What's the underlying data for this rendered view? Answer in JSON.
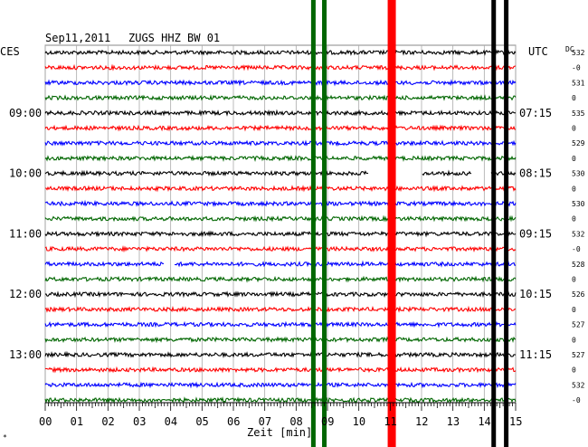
{
  "header": {
    "date": "Sep11,2011",
    "station": "ZUGS HHZ BW 01",
    "left_unit": "CES",
    "right_unit": "UTC",
    "dc_label": "DC"
  },
  "chart_data": {
    "type": "line",
    "title": "Sep11,2011   ZUGS HHZ BW 01",
    "xlabel": "Zeit [min]",
    "xlim": [
      0,
      15
    ],
    "x_ticks": [
      "00",
      "01",
      "02",
      "03",
      "04",
      "05",
      "06",
      "07",
      "08",
      "09",
      "10",
      "11",
      "12",
      "13",
      "14",
      "15"
    ],
    "trace_count": 24,
    "trace_colors": [
      "#000000",
      "#ff0000",
      "#0000ff",
      "#006600"
    ],
    "left_time_labels": [
      {
        "trace": 4,
        "label": "09:00"
      },
      {
        "trace": 8,
        "label": "10:00"
      },
      {
        "trace": 12,
        "label": "11:00"
      },
      {
        "trace": 16,
        "label": "12:00"
      },
      {
        "trace": 20,
        "label": "13:00"
      }
    ],
    "right_time_labels": [
      {
        "trace": 4,
        "label": "07:15"
      },
      {
        "trace": 8,
        "label": "08:15"
      },
      {
        "trace": 12,
        "label": "09:15"
      },
      {
        "trace": 16,
        "label": "10:15"
      },
      {
        "trace": 20,
        "label": "11:15"
      }
    ],
    "dc_values": [
      "532",
      "-0",
      "531",
      "0",
      "535",
      "0",
      "529",
      "0",
      "530",
      "0",
      "530",
      "0",
      "532",
      "-0",
      "528",
      "0",
      "526",
      "0",
      "527",
      "0",
      "527",
      "0",
      "532",
      "-0"
    ],
    "gaps": [
      {
        "trace": 8,
        "x_start": 10.3,
        "x_end": 12.0
      },
      {
        "trace": 8,
        "x_start": 13.6,
        "x_end": 14.2
      },
      {
        "trace": 14,
        "x_start": 3.8,
        "x_end": 4.1
      }
    ],
    "events": [
      {
        "x": 8.55,
        "color": "#006600"
      },
      {
        "x": 8.9,
        "color": "#006600"
      },
      {
        "x": 11.05,
        "color": "#ff0000"
      },
      {
        "x": 14.3,
        "color": "#000000"
      },
      {
        "x": 14.7,
        "color": "#000000"
      }
    ],
    "grid": true
  }
}
